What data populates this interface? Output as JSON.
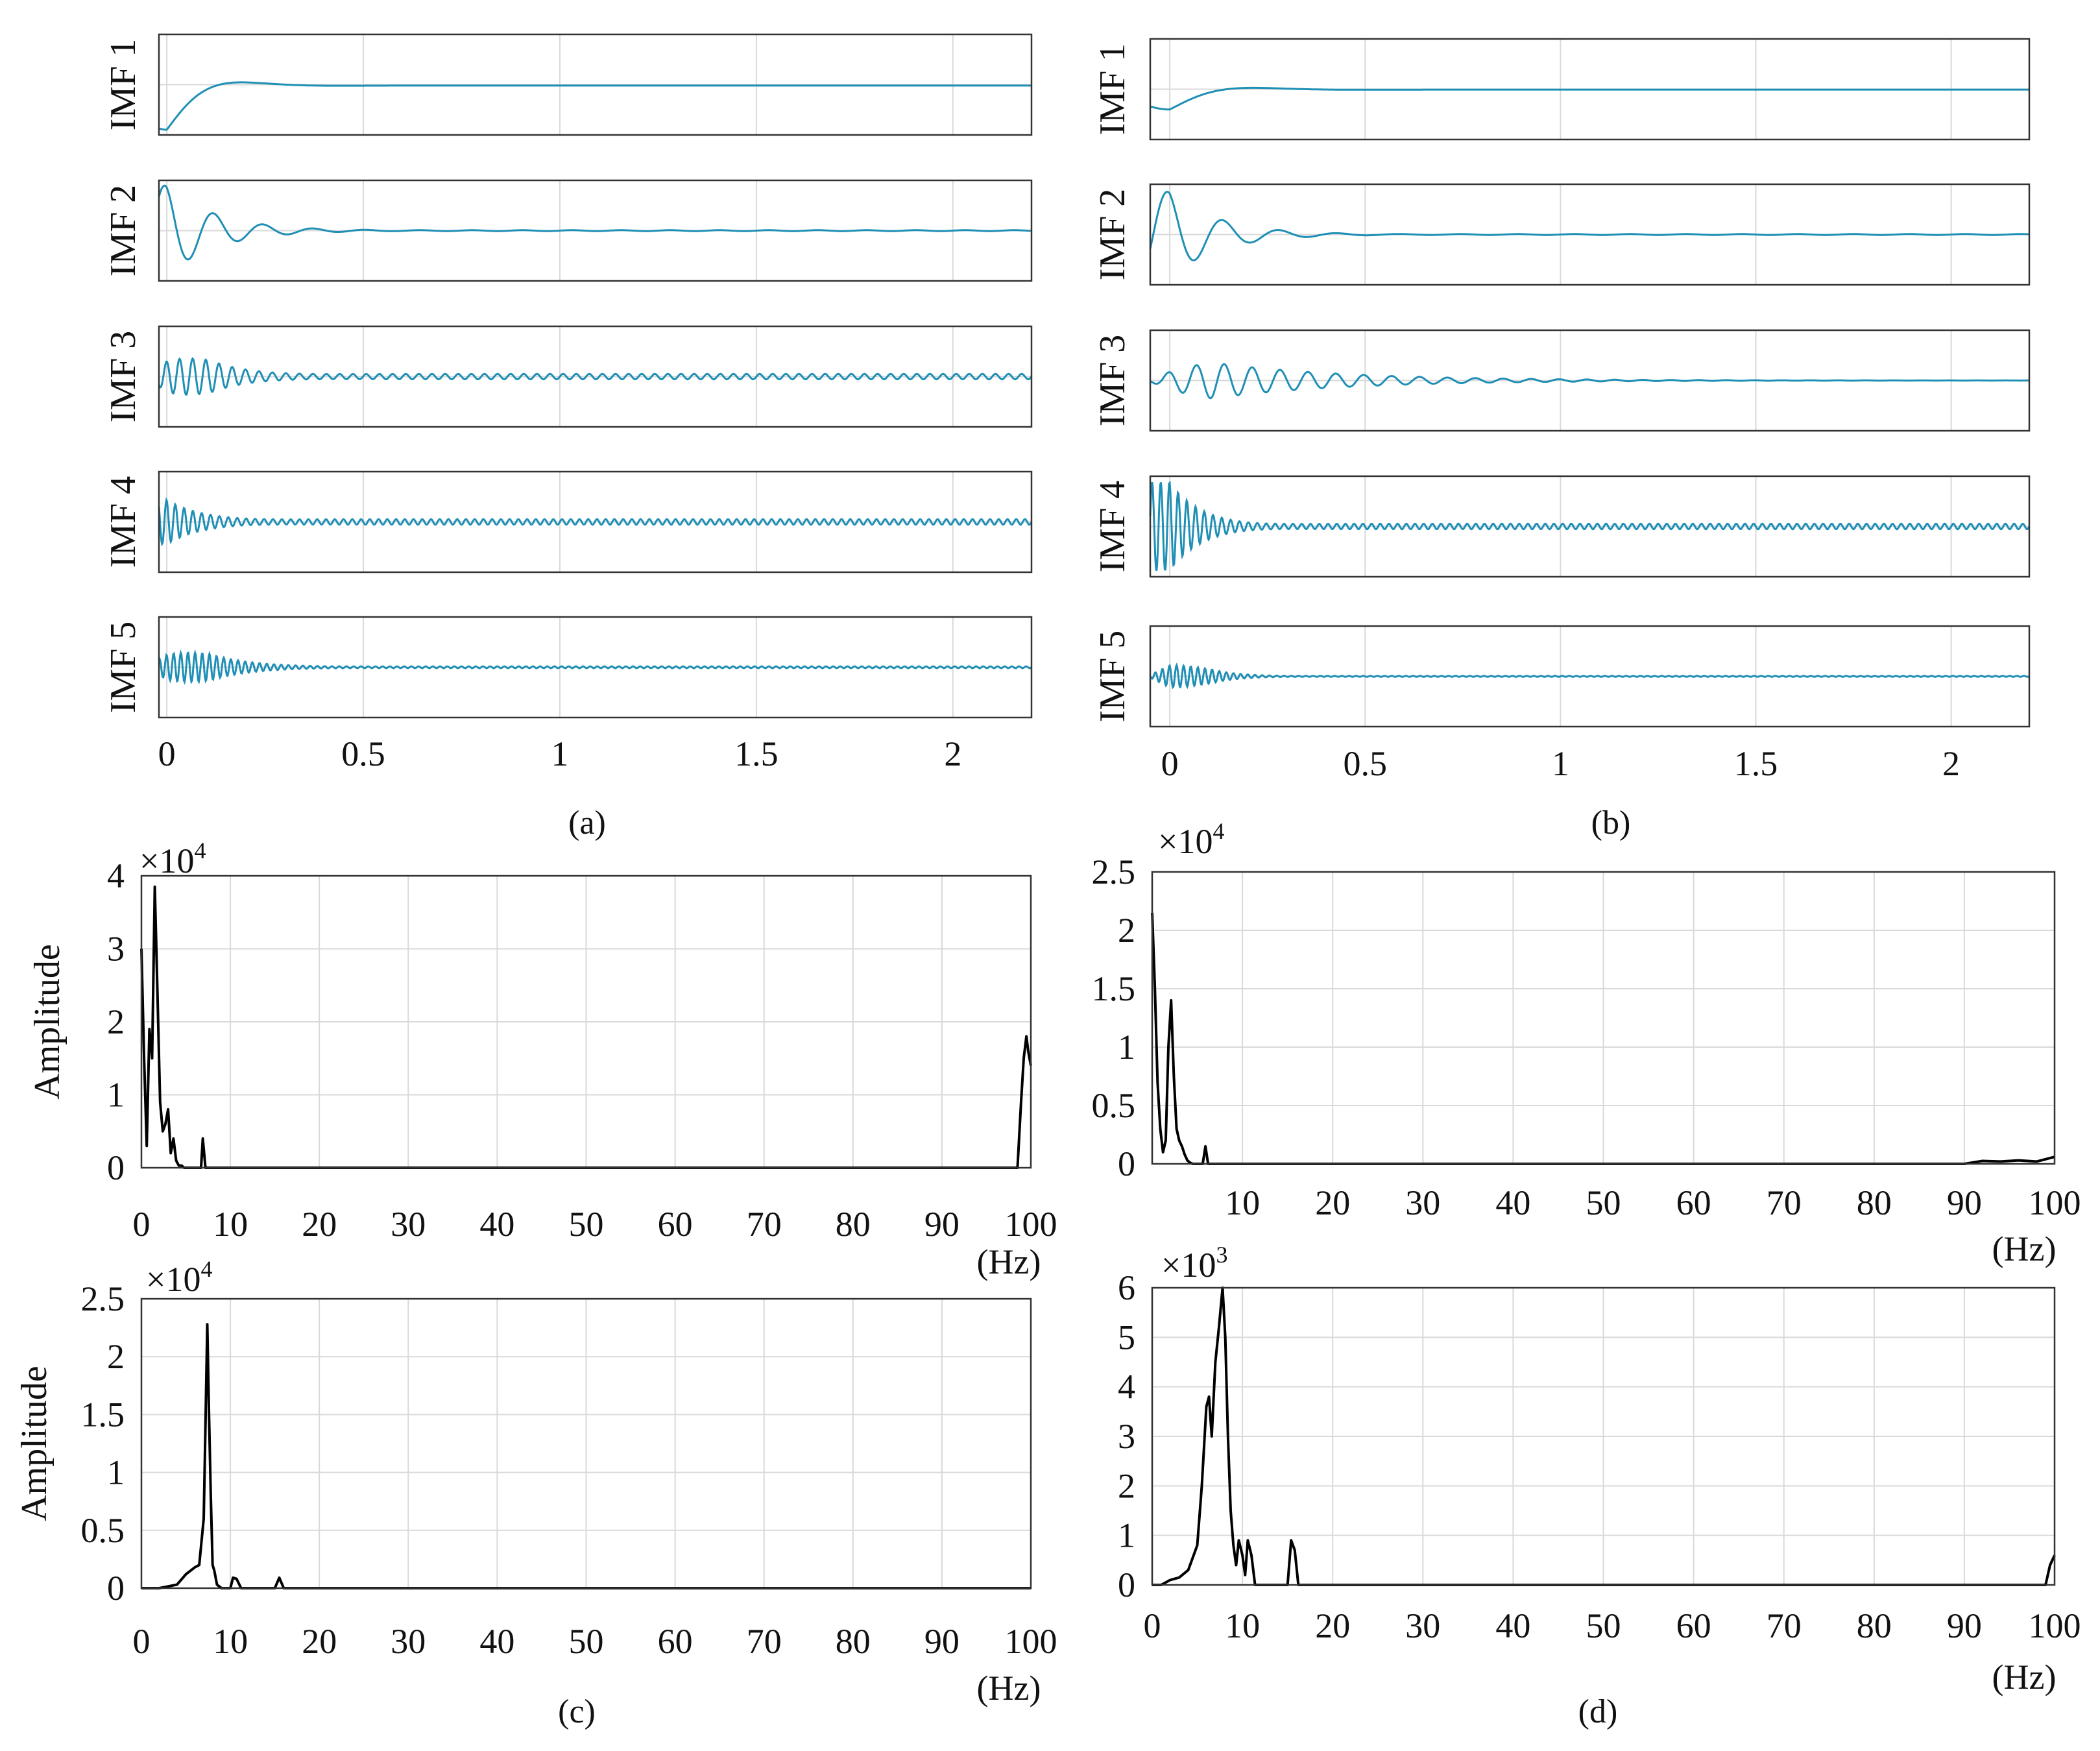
{
  "figure_labels": {
    "a": "(a)",
    "b": "(b)",
    "c": "(c)",
    "d": "(d)"
  },
  "colors": {
    "signal": "#1f8fb5",
    "spectrum": "#000000",
    "frame": "#333333",
    "grid": "#d9d9d9"
  },
  "chart_data": [
    {
      "panel": "a",
      "type": "line",
      "title": "",
      "xlabel": "",
      "xlim": [
        -0.02,
        2.2
      ],
      "x_ticks": [
        0,
        0.5,
        1,
        1.5,
        2
      ],
      "x_tick_labels": [
        "0",
        "0.5",
        "1",
        "1.5",
        "2"
      ],
      "grid": true,
      "series": [
        {
          "name": "IMF 1",
          "ylabel": "IMF 1",
          "amplitude": 1.0,
          "offset": -1.0,
          "freq_hz": 2.2,
          "decay": 12,
          "settle_s": 0.32,
          "ripple": 0.0
        },
        {
          "name": "IMF 2",
          "ylabel": "IMF 2",
          "amplitude": 1.0,
          "offset": 0.0,
          "freq_hz": 8.0,
          "decay": 8,
          "settle_s": 0.35,
          "ripple": 0.01
        },
        {
          "name": "IMF 3",
          "ylabel": "IMF 3",
          "amplitude": 1.0,
          "offset": 0.0,
          "freq_hz": 30.0,
          "decay": 9,
          "settle_s": 0.5,
          "ripple": 0.06
        },
        {
          "name": "IMF 4",
          "ylabel": "IMF 4",
          "amplitude": 0.5,
          "offset": 0.0,
          "freq_hz": 45.0,
          "decay": 10,
          "settle_s": 0.4,
          "ripple": 0.06
        },
        {
          "name": "IMF 5",
          "ylabel": "IMF 5",
          "amplitude": 0.8,
          "offset": 0.0,
          "freq_hz": 55.0,
          "decay": 9,
          "settle_s": 0.45,
          "ripple": 0.02
        }
      ]
    },
    {
      "panel": "b",
      "type": "line",
      "title": "",
      "xlabel": "",
      "xlim": [
        -0.05,
        2.2
      ],
      "x_ticks": [
        0,
        0.5,
        1,
        1.5,
        2
      ],
      "x_tick_labels": [
        "0",
        "0.5",
        "1",
        "1.5",
        "2"
      ],
      "grid": true,
      "series": [
        {
          "name": "IMF 1",
          "ylabel": "IMF 1",
          "amplitude": 0.45,
          "offset": -0.45,
          "freq_hz": 2.0,
          "decay": 10,
          "settle_s": 0.3,
          "ripple": 0.0
        },
        {
          "name": "IMF 2",
          "ylabel": "IMF 2",
          "amplitude": 0.95,
          "offset": 0.0,
          "freq_hz": 7.0,
          "decay": 8,
          "settle_s": 0.3,
          "ripple": 0.01
        },
        {
          "name": "IMF 3",
          "ylabel": "IMF 3",
          "amplitude": 0.55,
          "offset": 0.0,
          "freq_hz": 14.0,
          "decay": 3,
          "settle_s": 0.22,
          "ripple": 0.0
        },
        {
          "name": "IMF 4",
          "ylabel": "IMF 4",
          "amplitude": 1.0,
          "offset": 0.0,
          "freq_hz": 45.0,
          "decay": 12,
          "settle_s": 0.35,
          "ripple": 0.06
        },
        {
          "name": "IMF 5",
          "ylabel": "IMF 5",
          "amplitude": 0.7,
          "offset": 0.0,
          "freq_hz": 55.0,
          "decay": 14,
          "settle_s": 0.25,
          "ripple": 0.01
        }
      ]
    },
    {
      "panel": "c-top",
      "type": "line",
      "title": "",
      "xlabel": "(Hz)",
      "ylabel": "Amplitude",
      "y_multiplier": "×10",
      "y_exponent": "4",
      "xlim": [
        0,
        100
      ],
      "ylim": [
        0,
        40000
      ],
      "x_ticks": [
        0,
        10,
        20,
        30,
        40,
        50,
        60,
        70,
        80,
        90,
        100
      ],
      "x_tick_labels": [
        "0",
        "10",
        "20",
        "30",
        "40",
        "50",
        "60",
        "70",
        "80",
        "90",
        "100"
      ],
      "y_ticks": [
        0,
        10000,
        20000,
        30000,
        40000
      ],
      "y_tick_labels": [
        "0",
        "1",
        "2",
        "3",
        "4"
      ],
      "grid": true,
      "x": [
        0,
        0.3,
        0.6,
        0.9,
        1.2,
        1.5,
        1.8,
        2.1,
        2.4,
        2.7,
        3.0,
        3.3,
        3.6,
        3.9,
        4.2,
        4.5,
        4.8,
        5.0,
        5.3,
        5.6,
        6.0,
        6.4,
        6.7,
        6.9,
        7.2,
        7.6,
        8.0,
        20,
        40,
        60,
        80,
        98.5,
        98.9,
        99.2,
        99.5,
        99.7,
        100
      ],
      "y": [
        30000,
        15000,
        3000,
        19000,
        15000,
        38500,
        24000,
        9000,
        5000,
        6000,
        8000,
        2000,
        4000,
        1000,
        300,
        300,
        0,
        0,
        0,
        0,
        0,
        0,
        0,
        4000,
        0,
        0,
        0,
        0,
        0,
        0,
        0,
        0,
        9000,
        15000,
        18000,
        16000,
        14000
      ]
    },
    {
      "panel": "c-bottom",
      "type": "line",
      "title": "",
      "xlabel": "(Hz)",
      "ylabel": "Amplitude",
      "y_multiplier": "×10",
      "y_exponent": "4",
      "xlim": [
        0,
        100
      ],
      "ylim": [
        0,
        25000
      ],
      "x_ticks": [
        0,
        10,
        20,
        30,
        40,
        50,
        60,
        70,
        80,
        90,
        100
      ],
      "x_tick_labels": [
        "0",
        "10",
        "20",
        "30",
        "40",
        "50",
        "60",
        "70",
        "80",
        "90",
        "100"
      ],
      "y_ticks": [
        0,
        5000,
        10000,
        15000,
        20000,
        25000
      ],
      "y_tick_labels": [
        "0",
        "0.5",
        "1",
        "1.5",
        "2",
        "2.5"
      ],
      "grid": true,
      "x": [
        0,
        2,
        4,
        5,
        6,
        6.5,
        7.0,
        7.2,
        7.4,
        7.6,
        7.8,
        8.0,
        8.2,
        8.5,
        9.0,
        10,
        10.3,
        10.7,
        11.2,
        12,
        15,
        15.5,
        16,
        16.5,
        20,
        40,
        60,
        80,
        100
      ],
      "y": [
        0,
        0,
        300,
        1200,
        1800,
        2000,
        6000,
        14000,
        22800,
        15000,
        8000,
        2000,
        1500,
        300,
        0,
        0,
        900,
        800,
        0,
        0,
        0,
        900,
        0,
        0,
        0,
        0,
        0,
        0,
        0
      ]
    },
    {
      "panel": "d-top",
      "type": "line",
      "title": "",
      "xlabel": "(Hz)",
      "ylabel": "",
      "y_multiplier": "×10",
      "y_exponent": "4",
      "xlim": [
        0,
        100
      ],
      "ylim": [
        0,
        25000
      ],
      "x_ticks": [
        0,
        10,
        20,
        30,
        40,
        50,
        60,
        70,
        80,
        90,
        100
      ],
      "x_tick_labels": [
        "",
        "10",
        "20",
        "30",
        "40",
        "50",
        "60",
        "70",
        "80",
        "90",
        "100"
      ],
      "y_ticks": [
        0,
        5000,
        10000,
        15000,
        20000,
        25000
      ],
      "y_tick_labels": [
        "0",
        "0.5",
        "1",
        "1.5",
        "2",
        "2.5"
      ],
      "grid": true,
      "x": [
        0,
        0.3,
        0.6,
        0.9,
        1.2,
        1.5,
        1.8,
        2.1,
        2.4,
        2.7,
        3.0,
        3.3,
        3.6,
        3.9,
        4.2,
        4.5,
        4.8,
        5.2,
        5.6,
        5.9,
        6.2,
        6.6,
        7.0,
        20,
        40,
        60,
        80,
        90,
        92,
        94,
        96,
        98,
        100
      ],
      "y": [
        21500,
        15000,
        7000,
        3000,
        1000,
        2000,
        10000,
        14000,
        7500,
        3000,
        2000,
        1500,
        800,
        300,
        100,
        0,
        0,
        0,
        0,
        1500,
        0,
        0,
        0,
        0,
        0,
        0,
        0,
        0,
        250,
        200,
        300,
        200,
        600
      ]
    },
    {
      "panel": "d-bottom",
      "type": "line",
      "title": "",
      "xlabel": "(Hz)",
      "ylabel": "",
      "y_multiplier": "×10",
      "y_exponent": "3",
      "xlim": [
        0,
        100
      ],
      "ylim": [
        0,
        6000
      ],
      "x_ticks": [
        0,
        10,
        20,
        30,
        40,
        50,
        60,
        70,
        80,
        90,
        100
      ],
      "x_tick_labels": [
        "0",
        "10",
        "20",
        "30",
        "40",
        "50",
        "60",
        "70",
        "80",
        "90",
        "100"
      ],
      "y_ticks": [
        0,
        1000,
        2000,
        3000,
        4000,
        5000,
        6000
      ],
      "y_tick_labels": [
        "0",
        "1",
        "2",
        "3",
        "4",
        "5",
        "6"
      ],
      "grid": true,
      "x": [
        0,
        1,
        2,
        3,
        4,
        5,
        5.5,
        6,
        6.3,
        6.6,
        7.0,
        7.4,
        7.8,
        8.1,
        8.4,
        8.7,
        9.0,
        9.3,
        9.6,
        10,
        10.3,
        10.6,
        11.0,
        11.4,
        12,
        15,
        15.4,
        15.8,
        16.2,
        20,
        40,
        60,
        80,
        99,
        99.5,
        100
      ],
      "y": [
        0,
        0,
        100,
        150,
        300,
        800,
        2000,
        3600,
        3800,
        3000,
        4500,
        5200,
        6000,
        5000,
        3000,
        1500,
        800,
        400,
        900,
        600,
        200,
        900,
        600,
        0,
        0,
        0,
        900,
        700,
        0,
        0,
        0,
        0,
        0,
        0,
        400,
        600
      ]
    }
  ]
}
